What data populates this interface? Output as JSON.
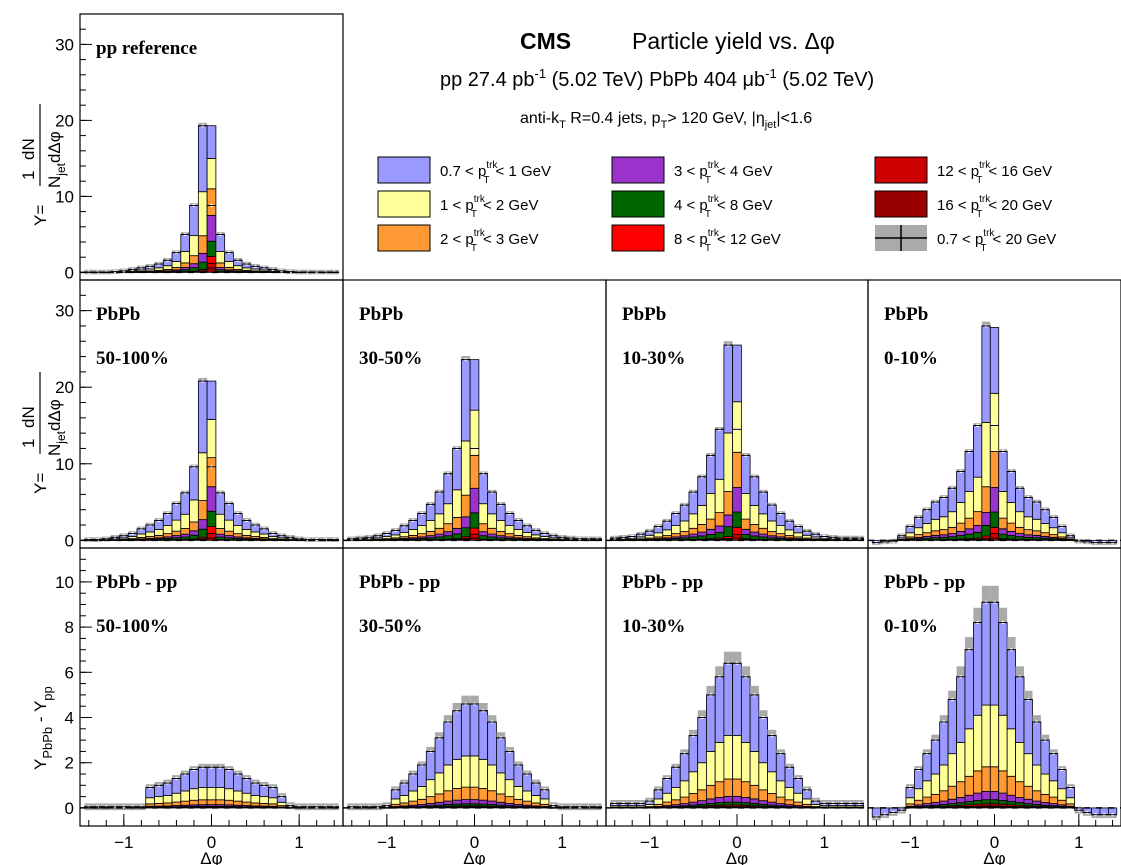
{
  "header": {
    "experiment": "CMS",
    "title": "Particle yield vs. Δφ",
    "lumi_pp_prefix": "pp 27.4 pb",
    "lumi_pp_suffix": " (5.02 TeV)  PbPb 404 μb",
    "lumi_pbpb_suffix": " (5.02 TeV)",
    "lumi_exp": "-1",
    "jets_text": "anti-k",
    "jets_sub": "T",
    "jets_mid": " R=0.4 jets, p",
    "jets_mid_sub": "T",
    "jets_end": "> 120 GeV, |η",
    "jets_eta_sub": "jet",
    "jets_tail": "|<1.6"
  },
  "legend": {
    "entries": [
      {
        "label_pre": "0.7 < p",
        "label_post": "< 1 GeV",
        "color": "#9999ff"
      },
      {
        "label_pre": "1 < p",
        "label_post": "< 2 GeV",
        "color": "#ffff99"
      },
      {
        "label_pre": "2 < p",
        "label_post": "< 3 GeV",
        "color": "#ff9933"
      },
      {
        "label_pre": "3 < p",
        "label_post": "< 4 GeV",
        "color": "#9933cc"
      },
      {
        "label_pre": "4 < p",
        "label_post": "< 8 GeV",
        "color": "#006600"
      },
      {
        "label_pre": "8 < p",
        "label_post": "< 12 GeV",
        "color": "#ff0000"
      },
      {
        "label_pre": "12 < p",
        "label_post": "< 16 GeV",
        "color": "#cc0000"
      },
      {
        "label_pre": "16 < p",
        "label_post": "< 20 GeV",
        "color": "#990000"
      },
      {
        "label_pre": "0.7 < p",
        "label_post": "< 20 GeV",
        "color": "#aaaaaa"
      }
    ],
    "sup": "trk",
    "sub": "T"
  },
  "axes": {
    "ylabel_yield_num": "1",
    "ylabel_yield_dn": "dN",
    "ylabel_yield_y": "Y=",
    "ylabel_yield_den": "N",
    "ylabel_yield_den_sub": "jet",
    "ylabel_yield_den_end": "dΔφ",
    "ylabel_diff_y": "Y",
    "ylabel_diff_sub1": "PbPb",
    "ylabel_diff_mid": " - Y",
    "ylabel_diff_sub2": "pp",
    "xlabel": "Δφ",
    "yield_ticks": [
      "0",
      "10",
      "20",
      "30"
    ],
    "diff_ticks": [
      "0",
      "2",
      "4",
      "6",
      "8",
      "10"
    ],
    "x_ticks": [
      "−1",
      "0",
      "1"
    ]
  },
  "panel_labels": {
    "pp": "pp reference",
    "pbpb": "PbPb",
    "diff": "PbPb - pp",
    "centralities": [
      "50-100%",
      "30-50%",
      "10-30%",
      "0-10%"
    ]
  },
  "chart_data": [
    {
      "type": "bar",
      "name": "pp reference",
      "xlabel": "Δφ",
      "ylabel": "Y",
      "xlim": [
        -1.5,
        1.5
      ],
      "ylim": [
        -1,
        34
      ],
      "dphi_bin_centers": [
        -1.4,
        -1.3,
        -1.2,
        -1.1,
        -1.0,
        -0.9,
        -0.8,
        -0.7,
        -0.6,
        -0.5,
        -0.4,
        -0.3,
        -0.2,
        -0.1,
        0.0,
        0.1,
        0.2,
        0.3,
        0.4,
        0.5,
        0.6,
        0.7,
        0.8,
        0.9,
        1.0,
        1.1,
        1.2,
        1.3,
        1.4
      ],
      "total": [
        0.05,
        0.05,
        0.05,
        0.1,
        0.2,
        0.4,
        0.6,
        0.8,
        1.1,
        1.6,
        2.6,
        5.0,
        8.8,
        19.3,
        8.8,
        5.0,
        2.6,
        1.6,
        1.1,
        0.8,
        0.6,
        0.4,
        0.2,
        0.1,
        0.05,
        0.05,
        0.05,
        0.05,
        0.05
      ],
      "peak_stack": [
        4.3,
        4.0,
        3.5,
        3.4,
        2.0,
        0.9,
        0.6,
        0.6
      ],
      "stack_fraction_off_peak": [
        0.45,
        0.3,
        0.12,
        0.06,
        0.05,
        0.01,
        0.005,
        0.005
      ]
    },
    {
      "type": "bar",
      "name": "PbPb 50-100%",
      "xlabel": "Δφ",
      "ylabel": "Y",
      "xlim": [
        -1.5,
        1.5
      ],
      "ylim": [
        -1,
        34
      ],
      "dphi_bin_centers": [
        -1.4,
        -1.3,
        -1.2,
        -1.1,
        -1.0,
        -0.9,
        -0.8,
        -0.7,
        -0.6,
        -0.5,
        -0.4,
        -0.3,
        -0.2,
        -0.1,
        0.0,
        0.1,
        0.2,
        0.3,
        0.4,
        0.5,
        0.6,
        0.7,
        0.8,
        0.9,
        1.0,
        1.1,
        1.2,
        1.3,
        1.4
      ],
      "total": [
        0.1,
        0.1,
        0.2,
        0.4,
        0.6,
        0.9,
        1.5,
        2.0,
        2.6,
        3.5,
        4.8,
        6.2,
        9.6,
        20.8,
        9.6,
        6.2,
        4.8,
        3.5,
        2.6,
        2.0,
        1.5,
        0.9,
        0.6,
        0.4,
        0.2,
        0.1,
        0.1,
        0.1,
        0.1
      ],
      "peak_stack": [
        5.0,
        5.0,
        3.8,
        3.2,
        2.0,
        0.9,
        0.6,
        0.3
      ],
      "stack_fraction_off_peak": [
        0.45,
        0.3,
        0.12,
        0.06,
        0.05,
        0.01,
        0.005,
        0.005
      ]
    },
    {
      "type": "bar",
      "name": "PbPb 30-50%",
      "xlabel": "Δφ",
      "ylabel": "Y",
      "xlim": [
        -1.5,
        1.5
      ],
      "ylim": [
        -1,
        34
      ],
      "dphi_bin_centers": [
        -1.4,
        -1.3,
        -1.2,
        -1.1,
        -1.0,
        -0.9,
        -0.8,
        -0.7,
        -0.6,
        -0.5,
        -0.4,
        -0.3,
        -0.2,
        -0.1,
        0.0,
        0.1,
        0.2,
        0.3,
        0.4,
        0.5,
        0.6,
        0.7,
        0.8,
        0.9,
        1.0,
        1.1,
        1.2,
        1.3,
        1.4
      ],
      "total": [
        0.2,
        0.3,
        0.4,
        0.6,
        0.9,
        1.3,
        1.9,
        2.6,
        3.5,
        4.7,
        6.3,
        8.7,
        12.0,
        23.6,
        12.0,
        8.7,
        6.3,
        4.7,
        3.5,
        2.6,
        1.9,
        1.3,
        0.9,
        0.6,
        0.4,
        0.3,
        0.2,
        0.2,
        0.2
      ],
      "peak_stack": [
        6.6,
        5.9,
        4.3,
        3.2,
        2.0,
        0.8,
        0.5,
        0.3
      ],
      "stack_fraction_off_peak": [
        0.45,
        0.3,
        0.12,
        0.06,
        0.05,
        0.01,
        0.005,
        0.005
      ]
    },
    {
      "type": "bar",
      "name": "PbPb 10-30%",
      "xlabel": "Δφ",
      "ylabel": "Y",
      "xlim": [
        -1.5,
        1.5
      ],
      "ylim": [
        -1,
        34
      ],
      "dphi_bin_centers": [
        -1.4,
        -1.3,
        -1.2,
        -1.1,
        -1.0,
        -0.9,
        -0.8,
        -0.7,
        -0.6,
        -0.5,
        -0.4,
        -0.3,
        -0.2,
        -0.1,
        0.0,
        0.1,
        0.2,
        0.3,
        0.4,
        0.5,
        0.6,
        0.7,
        0.8,
        0.9,
        1.0,
        1.1,
        1.2,
        1.3,
        1.4
      ],
      "total": [
        0.3,
        0.4,
        0.5,
        0.8,
        1.2,
        1.8,
        2.5,
        3.5,
        4.6,
        6.3,
        8.3,
        11.1,
        14.5,
        25.5,
        14.5,
        11.1,
        8.3,
        6.3,
        4.6,
        3.5,
        2.5,
        1.8,
        1.2,
        0.8,
        0.5,
        0.4,
        0.3,
        0.3,
        0.3
      ],
      "peak_stack": [
        7.4,
        6.6,
        4.6,
        3.2,
        2.0,
        0.9,
        0.5,
        0.3
      ],
      "stack_fraction_off_peak": [
        0.45,
        0.3,
        0.12,
        0.06,
        0.05,
        0.01,
        0.005,
        0.005
      ]
    },
    {
      "type": "bar",
      "name": "PbPb 0-10%",
      "xlabel": "Δφ",
      "ylabel": "Y",
      "xlim": [
        -1.5,
        1.5
      ],
      "ylim": [
        -1,
        34
      ],
      "dphi_bin_centers": [
        -1.4,
        -1.3,
        -1.2,
        -1.1,
        -1.0,
        -0.9,
        -0.8,
        -0.7,
        -0.6,
        -0.5,
        -0.4,
        -0.3,
        -0.2,
        -0.1,
        0.0,
        0.1,
        0.2,
        0.3,
        0.4,
        0.5,
        0.6,
        0.7,
        0.8,
        0.9,
        1.0,
        1.1,
        1.2,
        1.3,
        1.4
      ],
      "total": [
        -0.3,
        -0.2,
        -0.1,
        0.6,
        1.8,
        3.0,
        4.0,
        5.0,
        5.6,
        6.8,
        9.0,
        11.6,
        15.0,
        28.0,
        15.0,
        11.6,
        9.0,
        6.8,
        5.6,
        5.0,
        4.0,
        3.0,
        1.8,
        0.6,
        -0.1,
        -0.2,
        -0.3,
        -0.3,
        -0.3
      ],
      "peak_stack": [
        8.6,
        7.6,
        4.7,
        3.2,
        2.0,
        0.8,
        0.6,
        0.3
      ],
      "stack_fraction_off_peak": [
        0.45,
        0.3,
        0.12,
        0.06,
        0.05,
        0.01,
        0.005,
        0.005
      ]
    },
    {
      "type": "bar",
      "name": "PbPb - pp 50-100%",
      "xlabel": "Δφ",
      "ylabel": "Y_PbPb - Y_pp",
      "xlim": [
        -1.5,
        1.5
      ],
      "ylim": [
        -0.8,
        11.5
      ],
      "dphi_bin_centers": [
        -1.4,
        -1.3,
        -1.2,
        -1.1,
        -1.0,
        -0.9,
        -0.8,
        -0.7,
        -0.6,
        -0.5,
        -0.4,
        -0.3,
        -0.2,
        -0.1,
        0.0,
        0.1,
        0.2,
        0.3,
        0.4,
        0.5,
        0.6,
        0.7,
        0.8,
        0.9,
        1.0,
        1.1,
        1.2,
        1.3,
        1.4
      ],
      "total": [
        0.05,
        0.05,
        0.05,
        0.05,
        0.05,
        0.05,
        0.05,
        0.9,
        1.0,
        1.1,
        1.3,
        1.5,
        1.7,
        1.8,
        1.8,
        1.8,
        1.7,
        1.5,
        1.3,
        1.1,
        1.0,
        0.9,
        0.5,
        0.1,
        0.05,
        0.05,
        0.05,
        0.05,
        0.05
      ],
      "stack_fraction": [
        0.5,
        0.3,
        0.12,
        0.04,
        0.02,
        0.01,
        0.005,
        0.005
      ]
    },
    {
      "type": "bar",
      "name": "PbPb - pp 30-50%",
      "xlabel": "Δφ",
      "ylabel": "Y_PbPb - Y_pp",
      "xlim": [
        -1.5,
        1.5
      ],
      "ylim": [
        -0.8,
        11.5
      ],
      "dphi_bin_centers": [
        -1.4,
        -1.3,
        -1.2,
        -1.1,
        -1.0,
        -0.9,
        -0.8,
        -0.7,
        -0.6,
        -0.5,
        -0.4,
        -0.3,
        -0.2,
        -0.1,
        0.0,
        0.1,
        0.2,
        0.3,
        0.4,
        0.5,
        0.6,
        0.7,
        0.8,
        0.9,
        1.0,
        1.1,
        1.2,
        1.3,
        1.4
      ],
      "total": [
        0.05,
        0.05,
        0.05,
        0.05,
        0.1,
        0.8,
        1.1,
        1.5,
        1.9,
        2.5,
        3.1,
        3.8,
        4.3,
        4.6,
        4.6,
        4.3,
        3.8,
        3.1,
        2.5,
        1.9,
        1.5,
        1.1,
        0.8,
        0.1,
        0.05,
        0.05,
        0.05,
        0.05,
        0.05
      ],
      "stack_fraction": [
        0.5,
        0.3,
        0.12,
        0.04,
        0.02,
        0.01,
        0.005,
        0.005
      ]
    },
    {
      "type": "bar",
      "name": "PbPb - pp 10-30%",
      "xlabel": "Δφ",
      "ylabel": "Y_PbPb - Y_pp",
      "xlim": [
        -1.5,
        1.5
      ],
      "ylim": [
        -0.8,
        11.5
      ],
      "dphi_bin_centers": [
        -1.4,
        -1.3,
        -1.2,
        -1.1,
        -1.0,
        -0.9,
        -0.8,
        -0.7,
        -0.6,
        -0.5,
        -0.4,
        -0.3,
        -0.2,
        -0.1,
        0.0,
        0.1,
        0.2,
        0.3,
        0.4,
        0.5,
        0.6,
        0.7,
        0.8,
        0.9,
        1.0,
        1.1,
        1.2,
        1.3,
        1.4
      ],
      "total": [
        0.2,
        0.2,
        0.2,
        0.2,
        0.3,
        0.8,
        1.3,
        1.8,
        2.4,
        3.2,
        4.0,
        5.0,
        5.8,
        6.4,
        6.4,
        5.8,
        5.0,
        4.0,
        3.2,
        2.4,
        1.8,
        1.3,
        0.8,
        0.3,
        0.2,
        0.2,
        0.2,
        0.2,
        0.2
      ],
      "stack_fraction": [
        0.5,
        0.3,
        0.12,
        0.04,
        0.02,
        0.01,
        0.005,
        0.005
      ]
    },
    {
      "type": "bar",
      "name": "PbPb - pp 0-10%",
      "xlabel": "Δφ",
      "ylabel": "Y_PbPb - Y_pp",
      "xlim": [
        -1.5,
        1.5
      ],
      "ylim": [
        -0.8,
        11.5
      ],
      "dphi_bin_centers": [
        -1.4,
        -1.3,
        -1.2,
        -1.1,
        -1.0,
        -0.9,
        -0.8,
        -0.7,
        -0.6,
        -0.5,
        -0.4,
        -0.3,
        -0.2,
        -0.1,
        0.0,
        0.1,
        0.2,
        0.3,
        0.4,
        0.5,
        0.6,
        0.7,
        0.8,
        0.9,
        1.0,
        1.1,
        1.2,
        1.3,
        1.4
      ],
      "total": [
        -0.4,
        -0.3,
        -0.2,
        -0.1,
        0.9,
        1.7,
        2.4,
        3.0,
        3.8,
        4.8,
        5.8,
        7.0,
        8.2,
        9.1,
        9.1,
        8.2,
        7.0,
        5.8,
        4.8,
        3.8,
        3.0,
        2.4,
        1.7,
        0.9,
        -0.1,
        -0.2,
        -0.3,
        -0.3,
        -0.3
      ],
      "stack_fraction": [
        0.5,
        0.3,
        0.12,
        0.04,
        0.02,
        0.01,
        0.005,
        0.005
      ]
    }
  ]
}
